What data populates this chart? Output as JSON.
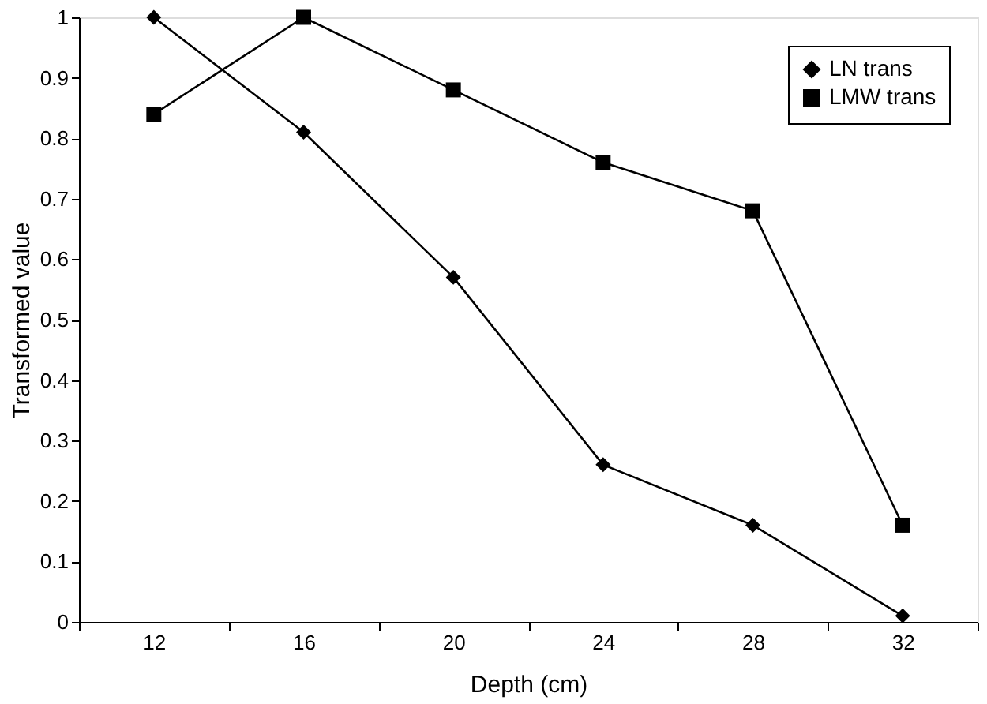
{
  "chart_data": {
    "type": "line",
    "xlabel": "Depth (cm)",
    "ylabel": "Transformed value",
    "categories": [
      "12",
      "16",
      "20",
      "24",
      "28",
      "32"
    ],
    "series": [
      {
        "name": "LN trans",
        "color": "#000000",
        "marker": "diamond",
        "values": [
          1.0,
          0.81,
          0.57,
          0.26,
          0.16,
          0.01
        ]
      },
      {
        "name": "LMW trans",
        "color": "#000000",
        "marker": "square",
        "values": [
          0.84,
          1.0,
          0.88,
          0.76,
          0.68,
          0.16
        ]
      }
    ],
    "ylim": [
      0,
      1
    ],
    "yticks": [
      0,
      0.1,
      0.2,
      0.3,
      0.4,
      0.5,
      0.6,
      0.7,
      0.8,
      0.9,
      1
    ],
    "grid": false,
    "legend": "top right",
    "line_style": "solid"
  }
}
